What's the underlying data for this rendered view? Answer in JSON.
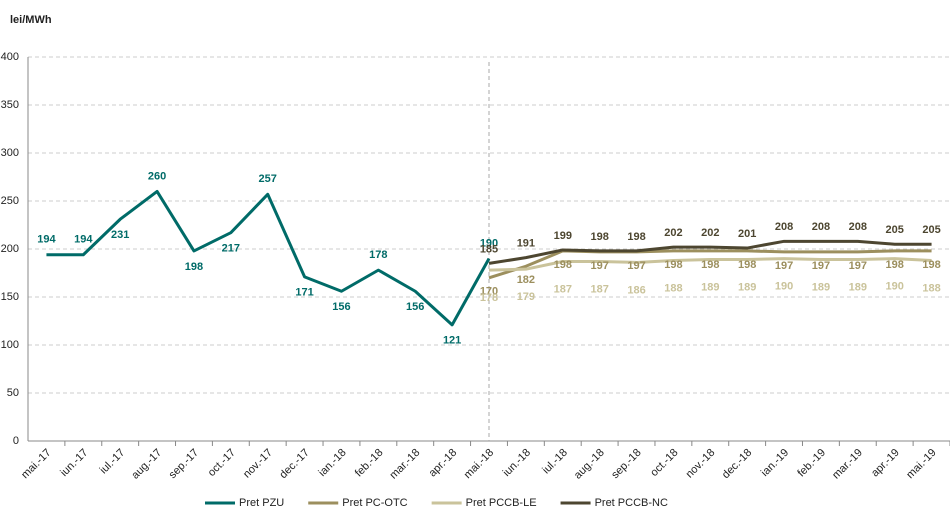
{
  "chart_data": {
    "type": "line",
    "y_label": "lei/MWh",
    "categories": [
      "mai.-17",
      "iun.-17",
      "iul.-17",
      "aug.-17",
      "sep.-17",
      "oct.-17",
      "nov.-17",
      "dec.-17",
      "ian.-18",
      "feb.-18",
      "mar.-18",
      "apr.-18",
      "mai.-18",
      "iun.-18",
      "iul.-18",
      "aug.-18",
      "sep.-18",
      "oct.-18",
      "nov.-18",
      "dec.-18",
      "ian.-19",
      "feb.-19",
      "mar.-19",
      "apr.-19",
      "mai.-19"
    ],
    "series": [
      {
        "name": "Pret PZU",
        "color": "#006b68",
        "values": [
          194,
          194,
          231,
          260,
          198,
          217,
          257,
          171,
          156,
          178,
          156,
          121,
          190,
          null,
          null,
          null,
          null,
          null,
          null,
          null,
          null,
          null,
          null,
          null,
          null
        ]
      },
      {
        "name": "Pret PC-OTC",
        "color": "#9c8f5e",
        "values": [
          null,
          null,
          null,
          null,
          null,
          null,
          null,
          null,
          null,
          null,
          null,
          null,
          170,
          182,
          198,
          197,
          197,
          198,
          198,
          198,
          197,
          197,
          197,
          198,
          198
        ]
      },
      {
        "name": "Pret PCCB-LE",
        "color": "#cac39b",
        "values": [
          null,
          null,
          null,
          null,
          null,
          null,
          null,
          null,
          null,
          null,
          null,
          null,
          178,
          179,
          187,
          187,
          186,
          188,
          189,
          189,
          190,
          189,
          189,
          190,
          188
        ]
      },
      {
        "name": "Pret PCCB-NC",
        "color": "#4d4630",
        "values": [
          null,
          null,
          null,
          null,
          null,
          null,
          null,
          null,
          null,
          null,
          null,
          null,
          185,
          191,
          199,
          198,
          198,
          202,
          202,
          201,
          208,
          208,
          208,
          205,
          205
        ]
      }
    ],
    "ylim": [
      0,
      400
    ],
    "yticks": [
      0,
      50,
      100,
      150,
      200,
      250,
      300,
      350,
      400
    ],
    "grid": true,
    "legend": "bottom"
  }
}
